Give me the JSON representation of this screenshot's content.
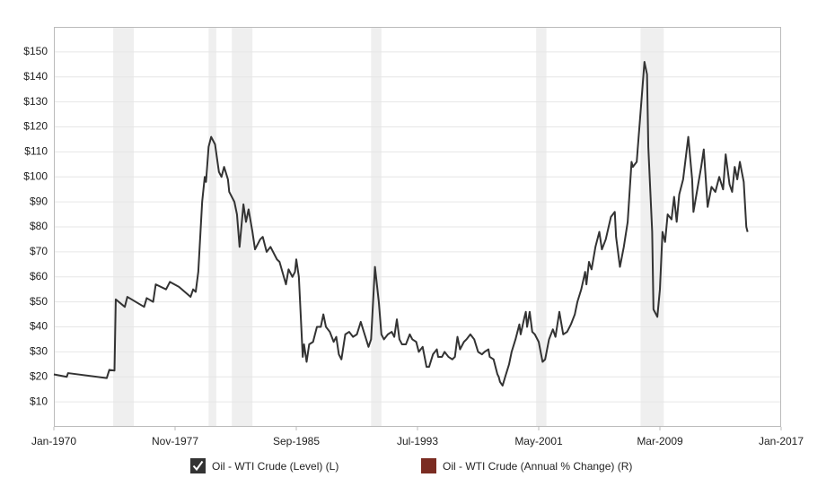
{
  "chart_data": {
    "type": "line",
    "x": [
      "1970-01",
      "1970-11",
      "1970-12",
      "1973-06",
      "1973-08",
      "1973-12",
      "1974-01",
      "1974-08",
      "1974-10",
      "1975-11",
      "1976-01",
      "1976-06",
      "1976-08",
      "1977-04",
      "1977-07",
      "1978-02",
      "1978-11",
      "1979-01",
      "1979-03",
      "1979-05",
      "1979-08",
      "1979-10",
      "1979-11",
      "1980-01",
      "1980-03",
      "1980-06",
      "1980-09",
      "1980-11",
      "1981-01",
      "1981-04",
      "1981-05",
      "1981-09",
      "1981-11",
      "1982-01",
      "1982-04",
      "1982-06",
      "1982-08",
      "1982-11",
      "1983-01",
      "1983-05",
      "1983-07",
      "1983-10",
      "1984-01",
      "1984-06",
      "1984-08",
      "1985-01",
      "1985-03",
      "1985-06",
      "1985-08",
      "1985-09",
      "1985-11",
      "1986-02",
      "1986-03",
      "1986-05",
      "1986-07",
      "1986-10",
      "1987-01",
      "1987-04",
      "1987-06",
      "1987-08",
      "1987-11",
      "1988-02",
      "1988-04",
      "1988-06",
      "1988-08",
      "1988-11",
      "1989-02",
      "1989-05",
      "1989-08",
      "1989-11",
      "1990-02",
      "1990-05",
      "1990-07",
      "1990-10",
      "1991-01",
      "1991-03",
      "1991-05",
      "1991-08",
      "1991-11",
      "1992-01",
      "1992-03",
      "1992-05",
      "1992-07",
      "1992-10",
      "1993-01",
      "1993-03",
      "1993-06",
      "1993-08",
      "1993-11",
      "1994-02",
      "1994-04",
      "1994-07",
      "1994-10",
      "1994-11",
      "1995-02",
      "1995-04",
      "1995-07",
      "1995-10",
      "1995-12",
      "1996-02",
      "1996-04",
      "1996-07",
      "1996-09",
      "1996-12",
      "1997-03",
      "1997-06",
      "1997-09",
      "1997-11",
      "1998-02",
      "1998-03",
      "1998-06",
      "1998-09",
      "1998-10",
      "1998-11",
      "1999-01",
      "1999-03",
      "1999-06",
      "1999-08",
      "1999-11",
      "2000-02",
      "2000-03",
      "2000-06",
      "2000-07",
      "2000-08",
      "2000-10",
      "2000-12",
      "2001-02",
      "2001-05",
      "2001-08",
      "2001-10",
      "2002-01",
      "2002-04",
      "2002-06",
      "2002-09",
      "2002-12",
      "2003-03",
      "2003-06",
      "2003-09",
      "2003-11",
      "2004-02",
      "2004-05",
      "2004-06",
      "2004-08",
      "2004-10",
      "2005-01",
      "2005-04",
      "2005-06",
      "2005-09",
      "2006-01",
      "2006-04",
      "2006-05",
      "2006-08",
      "2006-11",
      "2007-02",
      "2007-05",
      "2007-06",
      "2007-09",
      "2007-12",
      "2008-03",
      "2008-05",
      "2008-06",
      "2008-09",
      "2008-10",
      "2009-01",
      "2009-03",
      "2009-05",
      "2009-07",
      "2009-09",
      "2009-12",
      "2010-02",
      "2010-04",
      "2010-06",
      "2010-09",
      "2011-01",
      "2011-04",
      "2011-05",
      "2011-08",
      "2011-11",
      "2012-01",
      "2012-04",
      "2012-07",
      "2012-10",
      "2013-01",
      "2013-04",
      "2013-06",
      "2013-09",
      "2013-11",
      "2014-01",
      "2014-03",
      "2014-05",
      "2014-08",
      "2014-10",
      "2014-11"
    ],
    "series": [
      {
        "name": "Oil - WTI Crude (Level) (L)",
        "color": "#333333",
        "checked": true,
        "values": [
          21,
          20,
          21.5,
          19.5,
          22.8,
          22.5,
          51,
          48,
          52,
          48,
          51.5,
          50,
          57,
          55,
          58,
          56,
          52,
          55,
          54,
          62,
          90,
          100,
          98,
          112,
          116,
          113,
          102,
          100,
          104,
          99,
          94,
          90,
          85,
          72,
          89,
          82,
          87,
          78,
          71,
          75,
          76,
          70,
          72,
          67,
          66,
          57,
          63,
          60,
          62,
          67,
          60,
          28,
          33,
          26,
          33,
          34,
          40,
          40,
          45,
          40,
          38,
          34,
          36,
          29,
          27,
          37,
          38,
          36,
          37,
          42,
          37,
          32,
          35,
          64,
          50,
          37,
          35,
          37,
          38,
          36,
          43,
          35,
          33,
          33,
          37,
          35,
          34,
          30,
          32,
          24,
          24,
          29,
          31,
          28,
          28,
          30,
          28,
          27,
          28,
          36,
          31,
          34,
          35,
          37,
          35,
          30,
          29,
          30,
          31,
          28,
          27,
          21,
          20,
          18,
          16.5,
          20,
          25,
          30,
          35,
          41,
          37,
          44,
          46,
          40,
          46,
          38,
          37,
          34,
          26,
          27,
          35,
          39,
          36,
          46,
          37,
          38,
          41,
          45,
          50,
          55,
          62,
          57,
          66,
          63,
          72,
          78,
          71,
          75,
          84,
          86,
          76,
          64,
          72,
          82,
          106,
          104,
          106,
          126,
          146,
          141,
          112,
          78,
          47,
          44,
          55,
          78,
          74,
          85,
          83,
          92,
          82,
          93,
          99,
          116,
          99,
          86,
          95,
          104,
          111,
          88,
          96,
          94,
          100,
          95,
          109,
          97,
          94,
          104,
          99,
          106,
          98,
          80,
          78
        ]
      },
      {
        "name": "Oil - WTI Crude (Annual % Change) (R)",
        "color": "#7b2c22",
        "checked": false,
        "axis": "y2"
      }
    ],
    "recessions": [
      [
        "1973-11",
        "1975-03"
      ],
      [
        "1980-01",
        "1980-07"
      ],
      [
        "1981-07",
        "1982-11"
      ],
      [
        "1990-07",
        "1991-03"
      ],
      [
        "2001-03",
        "2001-11"
      ],
      [
        "2007-12",
        "2009-06"
      ]
    ],
    "recession_color": "#efefef",
    "xlim": [
      "1970-01",
      "2017-01"
    ],
    "xticks": [
      {
        "value": "1970-01",
        "label": "Jan-1970"
      },
      {
        "value": "1977-11",
        "label": "Nov-1977"
      },
      {
        "value": "1985-09",
        "label": "Sep-1985"
      },
      {
        "value": "1993-07",
        "label": "Jul-1993"
      },
      {
        "value": "2001-05",
        "label": "May-2001"
      },
      {
        "value": "2009-03",
        "label": "Mar-2009"
      },
      {
        "value": "2017-01",
        "label": "Jan-2017"
      }
    ],
    "ylim": [
      0,
      160
    ],
    "yticks": [
      {
        "value": 10,
        "label": "$10"
      },
      {
        "value": 20,
        "label": "$20"
      },
      {
        "value": 30,
        "label": "$30"
      },
      {
        "value": 40,
        "label": "$40"
      },
      {
        "value": 50,
        "label": "$50"
      },
      {
        "value": 60,
        "label": "$60"
      },
      {
        "value": 70,
        "label": "$70"
      },
      {
        "value": 80,
        "label": "$80"
      },
      {
        "value": 90,
        "label": "$90"
      },
      {
        "value": 100,
        "label": "$100"
      },
      {
        "value": 110,
        "label": "$110"
      },
      {
        "value": 120,
        "label": "$120"
      },
      {
        "value": 130,
        "label": "$130"
      },
      {
        "value": 140,
        "label": "$140"
      },
      {
        "value": 150,
        "label": "$150"
      }
    ],
    "grid": true
  }
}
